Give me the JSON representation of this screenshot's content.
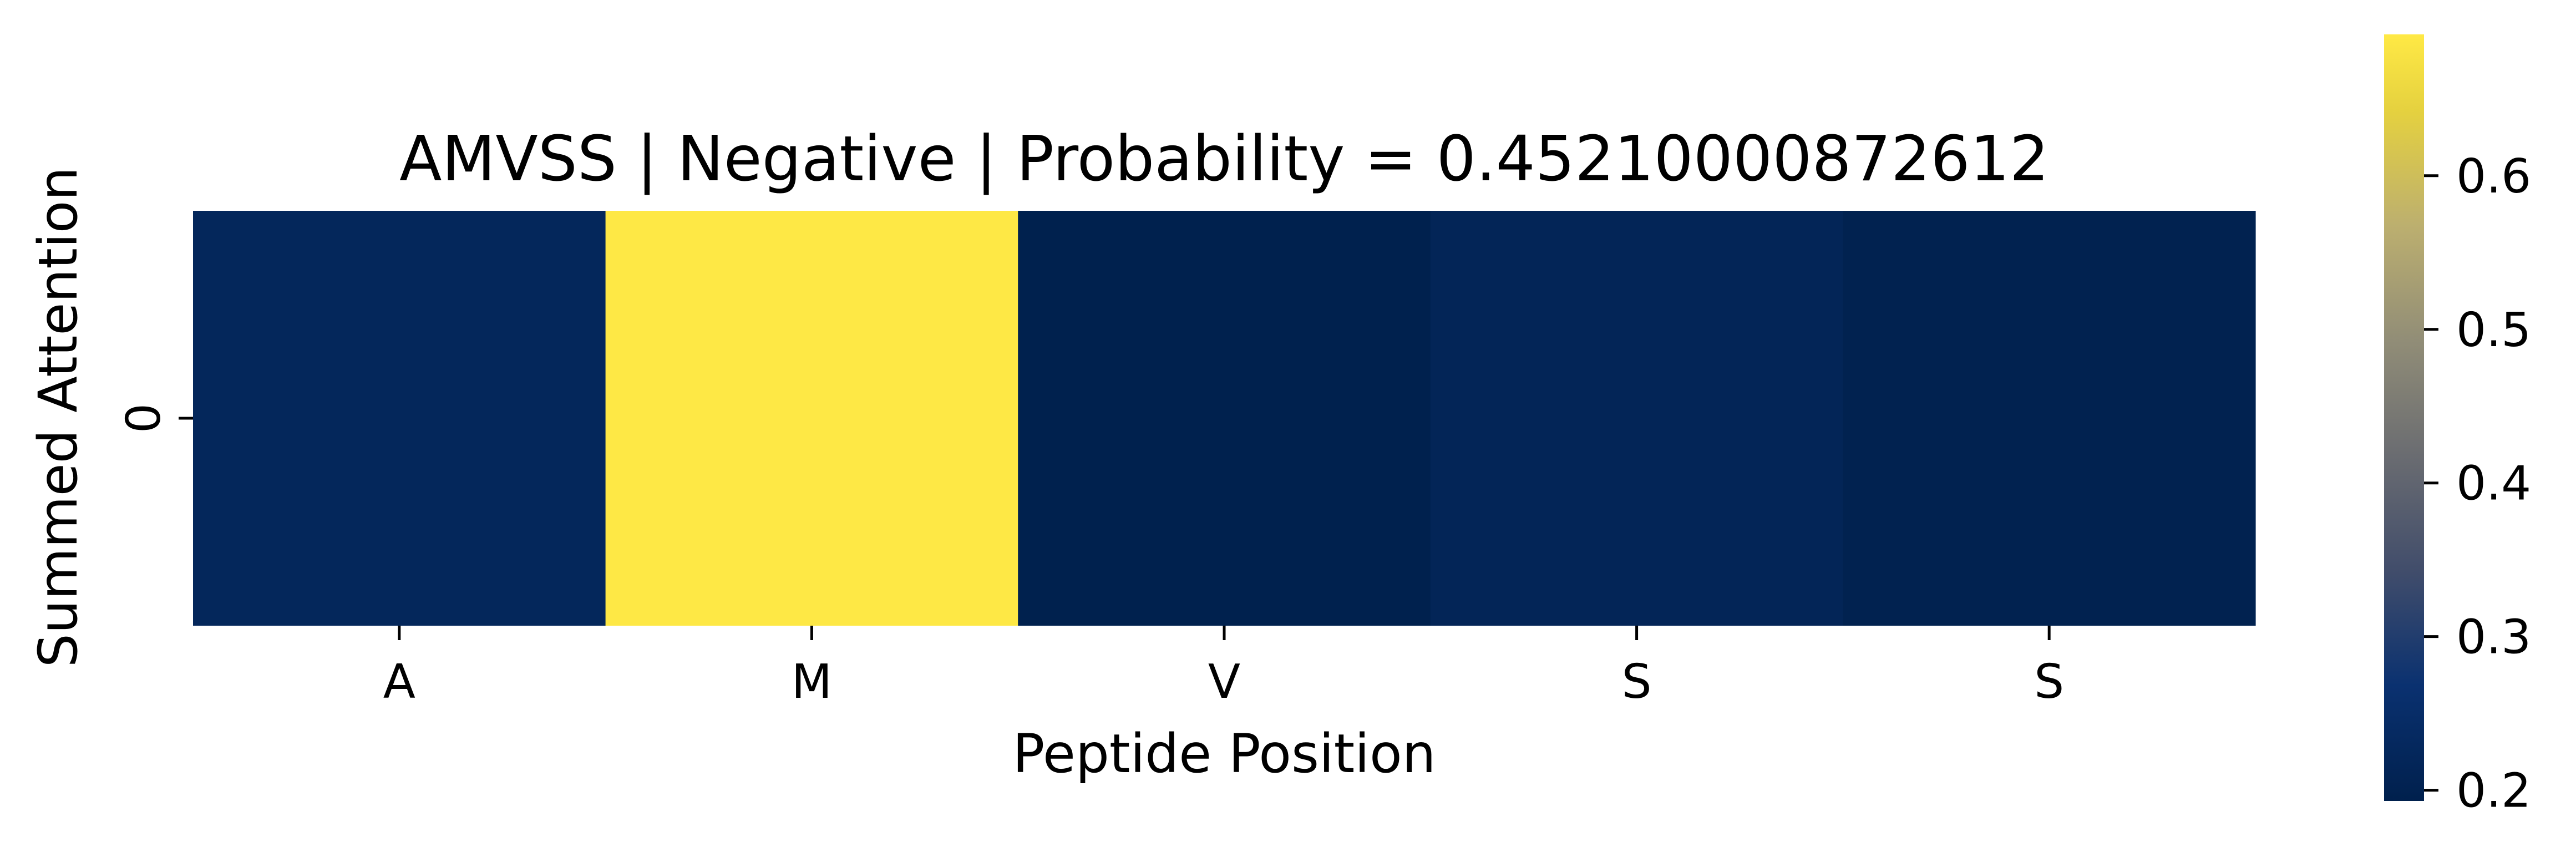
{
  "chart_data": {
    "type": "heatmap",
    "title": "AMVSS | Negative | Probability = 0.45210000872612",
    "xlabel": "Peptide Position",
    "ylabel": "Summed Attention",
    "x_categories": [
      "A",
      "M",
      "V",
      "S",
      "S"
    ],
    "y_categories": [
      "0"
    ],
    "values": [
      [
        0.222,
        0.69,
        0.196,
        0.215,
        0.2
      ]
    ],
    "colorbar": {
      "colormap": "cividis",
      "vmin": 0.193,
      "vmax": 0.692,
      "ticks": [
        0.2,
        0.3,
        0.4,
        0.5,
        0.6
      ],
      "tick_labels": [
        "0.2",
        "0.3",
        "0.4",
        "0.5",
        "0.6"
      ],
      "position": "right"
    },
    "grid": false
  }
}
